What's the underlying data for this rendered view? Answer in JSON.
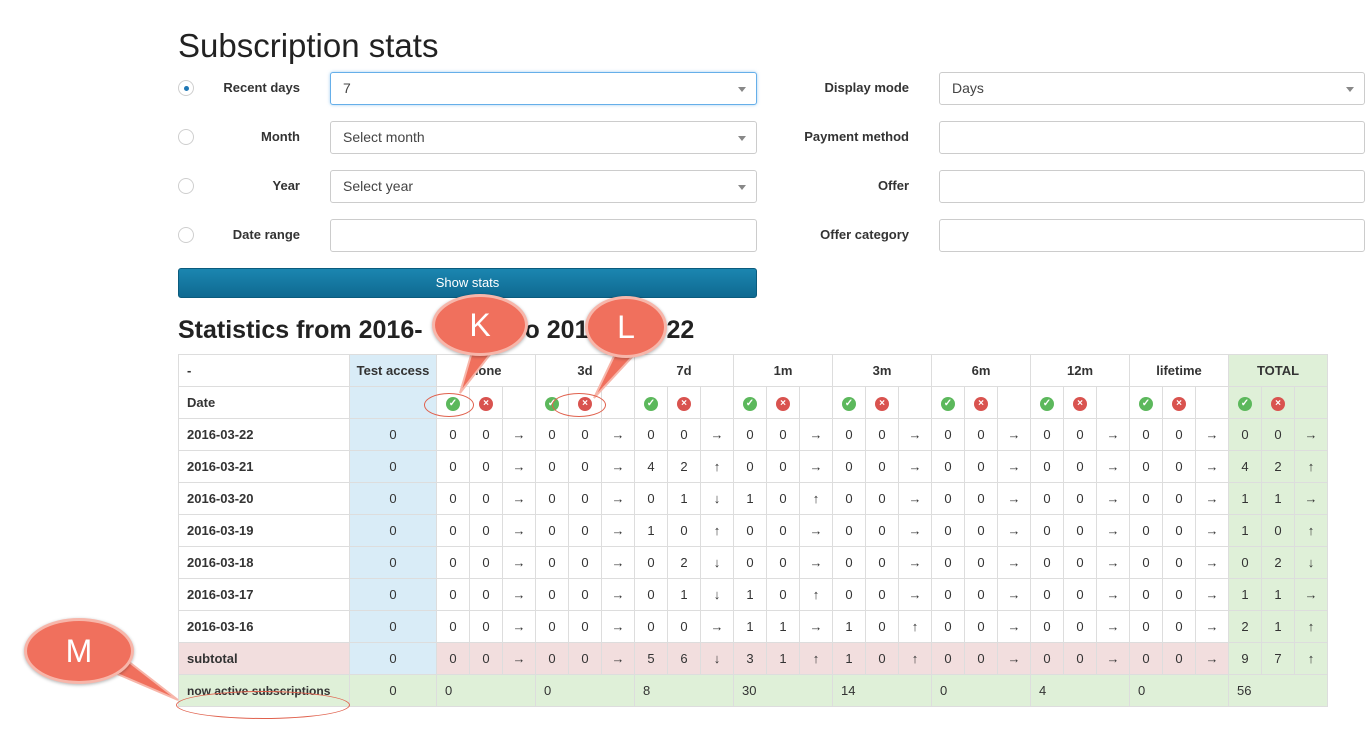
{
  "page_title": "Subscription stats",
  "filters": {
    "recent_days": {
      "label": "Recent days",
      "value": "7",
      "checked": true
    },
    "month": {
      "label": "Month",
      "placeholder": "Select month",
      "checked": false
    },
    "year": {
      "label": "Year",
      "placeholder": "Select year",
      "checked": false
    },
    "date_range": {
      "label": "Date range",
      "value": "",
      "checked": false
    },
    "display_mode": {
      "label": "Display mode",
      "value": "Days"
    },
    "payment_method": {
      "label": "Payment method",
      "value": ""
    },
    "offer": {
      "label": "Offer",
      "value": ""
    },
    "offer_category": {
      "label": "Offer category",
      "value": ""
    }
  },
  "show_button": "Show stats",
  "stats_title": "Statistics from 2016-",
  "stats_title_mid": "o 201",
  "stats_title_end": "22",
  "table": {
    "corner": "-",
    "date_label": "Date",
    "test_access_header": "Test access",
    "group_headers": [
      "none",
      "3d",
      "7d",
      "1m",
      "3m",
      "6m",
      "12m",
      "lifetime"
    ],
    "total_header": "TOTAL",
    "ok_icon": "check-circle-icon",
    "bad_icon": "x-circle-icon",
    "rows": [
      {
        "date": "2016-03-22",
        "ta": "0",
        "groups": [
          [
            "0",
            "0",
            "→"
          ],
          [
            "0",
            "0",
            "→"
          ],
          [
            "0",
            "0",
            "→"
          ],
          [
            "0",
            "0",
            "→"
          ],
          [
            "0",
            "0",
            "→"
          ],
          [
            "0",
            "0",
            "→"
          ],
          [
            "0",
            "0",
            "→"
          ],
          [
            "0",
            "0",
            "→"
          ]
        ],
        "total": [
          "0",
          "0",
          "→"
        ]
      },
      {
        "date": "2016-03-21",
        "ta": "0",
        "groups": [
          [
            "0",
            "0",
            "→"
          ],
          [
            "0",
            "0",
            "→"
          ],
          [
            "4",
            "2",
            "↑"
          ],
          [
            "0",
            "0",
            "→"
          ],
          [
            "0",
            "0",
            "→"
          ],
          [
            "0",
            "0",
            "→"
          ],
          [
            "0",
            "0",
            "→"
          ],
          [
            "0",
            "0",
            "→"
          ]
        ],
        "total": [
          "4",
          "2",
          "↑"
        ]
      },
      {
        "date": "2016-03-20",
        "ta": "0",
        "groups": [
          [
            "0",
            "0",
            "→"
          ],
          [
            "0",
            "0",
            "→"
          ],
          [
            "0",
            "1",
            "↓"
          ],
          [
            "1",
            "0",
            "↑"
          ],
          [
            "0",
            "0",
            "→"
          ],
          [
            "0",
            "0",
            "→"
          ],
          [
            "0",
            "0",
            "→"
          ],
          [
            "0",
            "0",
            "→"
          ]
        ],
        "total": [
          "1",
          "1",
          "→"
        ]
      },
      {
        "date": "2016-03-19",
        "ta": "0",
        "groups": [
          [
            "0",
            "0",
            "→"
          ],
          [
            "0",
            "0",
            "→"
          ],
          [
            "1",
            "0",
            "↑"
          ],
          [
            "0",
            "0",
            "→"
          ],
          [
            "0",
            "0",
            "→"
          ],
          [
            "0",
            "0",
            "→"
          ],
          [
            "0",
            "0",
            "→"
          ],
          [
            "0",
            "0",
            "→"
          ]
        ],
        "total": [
          "1",
          "0",
          "↑"
        ]
      },
      {
        "date": "2016-03-18",
        "ta": "0",
        "groups": [
          [
            "0",
            "0",
            "→"
          ],
          [
            "0",
            "0",
            "→"
          ],
          [
            "0",
            "2",
            "↓"
          ],
          [
            "0",
            "0",
            "→"
          ],
          [
            "0",
            "0",
            "→"
          ],
          [
            "0",
            "0",
            "→"
          ],
          [
            "0",
            "0",
            "→"
          ],
          [
            "0",
            "0",
            "→"
          ]
        ],
        "total": [
          "0",
          "2",
          "↓"
        ]
      },
      {
        "date": "2016-03-17",
        "ta": "0",
        "groups": [
          [
            "0",
            "0",
            "→"
          ],
          [
            "0",
            "0",
            "→"
          ],
          [
            "0",
            "1",
            "↓"
          ],
          [
            "1",
            "0",
            "↑"
          ],
          [
            "0",
            "0",
            "→"
          ],
          [
            "0",
            "0",
            "→"
          ],
          [
            "0",
            "0",
            "→"
          ],
          [
            "0",
            "0",
            "→"
          ]
        ],
        "total": [
          "1",
          "1",
          "→"
        ]
      },
      {
        "date": "2016-03-16",
        "ta": "0",
        "groups": [
          [
            "0",
            "0",
            "→"
          ],
          [
            "0",
            "0",
            "→"
          ],
          [
            "0",
            "0",
            "→"
          ],
          [
            "1",
            "1",
            "→"
          ],
          [
            "1",
            "0",
            "↑"
          ],
          [
            "0",
            "0",
            "→"
          ],
          [
            "0",
            "0",
            "→"
          ],
          [
            "0",
            "0",
            "→"
          ]
        ],
        "total": [
          "2",
          "1",
          "↑"
        ]
      }
    ],
    "subtotal": {
      "label": "subtotal",
      "ta": "0",
      "groups": [
        [
          "0",
          "0",
          "→"
        ],
        [
          "0",
          "0",
          "→"
        ],
        [
          "5",
          "6",
          "↓"
        ],
        [
          "3",
          "1",
          "↑"
        ],
        [
          "1",
          "0",
          "↑"
        ],
        [
          "0",
          "0",
          "→"
        ],
        [
          "0",
          "0",
          "→"
        ],
        [
          "0",
          "0",
          "→"
        ]
      ],
      "total": [
        "9",
        "7",
        "↑"
      ]
    },
    "active": {
      "label": "now active subscriptions",
      "ta": "0",
      "groups": [
        "0",
        "0",
        "8",
        "30",
        "14",
        "0",
        "4",
        "0"
      ],
      "total": "56"
    }
  },
  "callouts": {
    "k": "K",
    "l": "L",
    "m": "M"
  },
  "colors": {
    "accent": "#1b86b0",
    "callout": "#f0705d",
    "up": "#5cb85c",
    "down": "#d9534f",
    "flat": "#f0a30a"
  }
}
